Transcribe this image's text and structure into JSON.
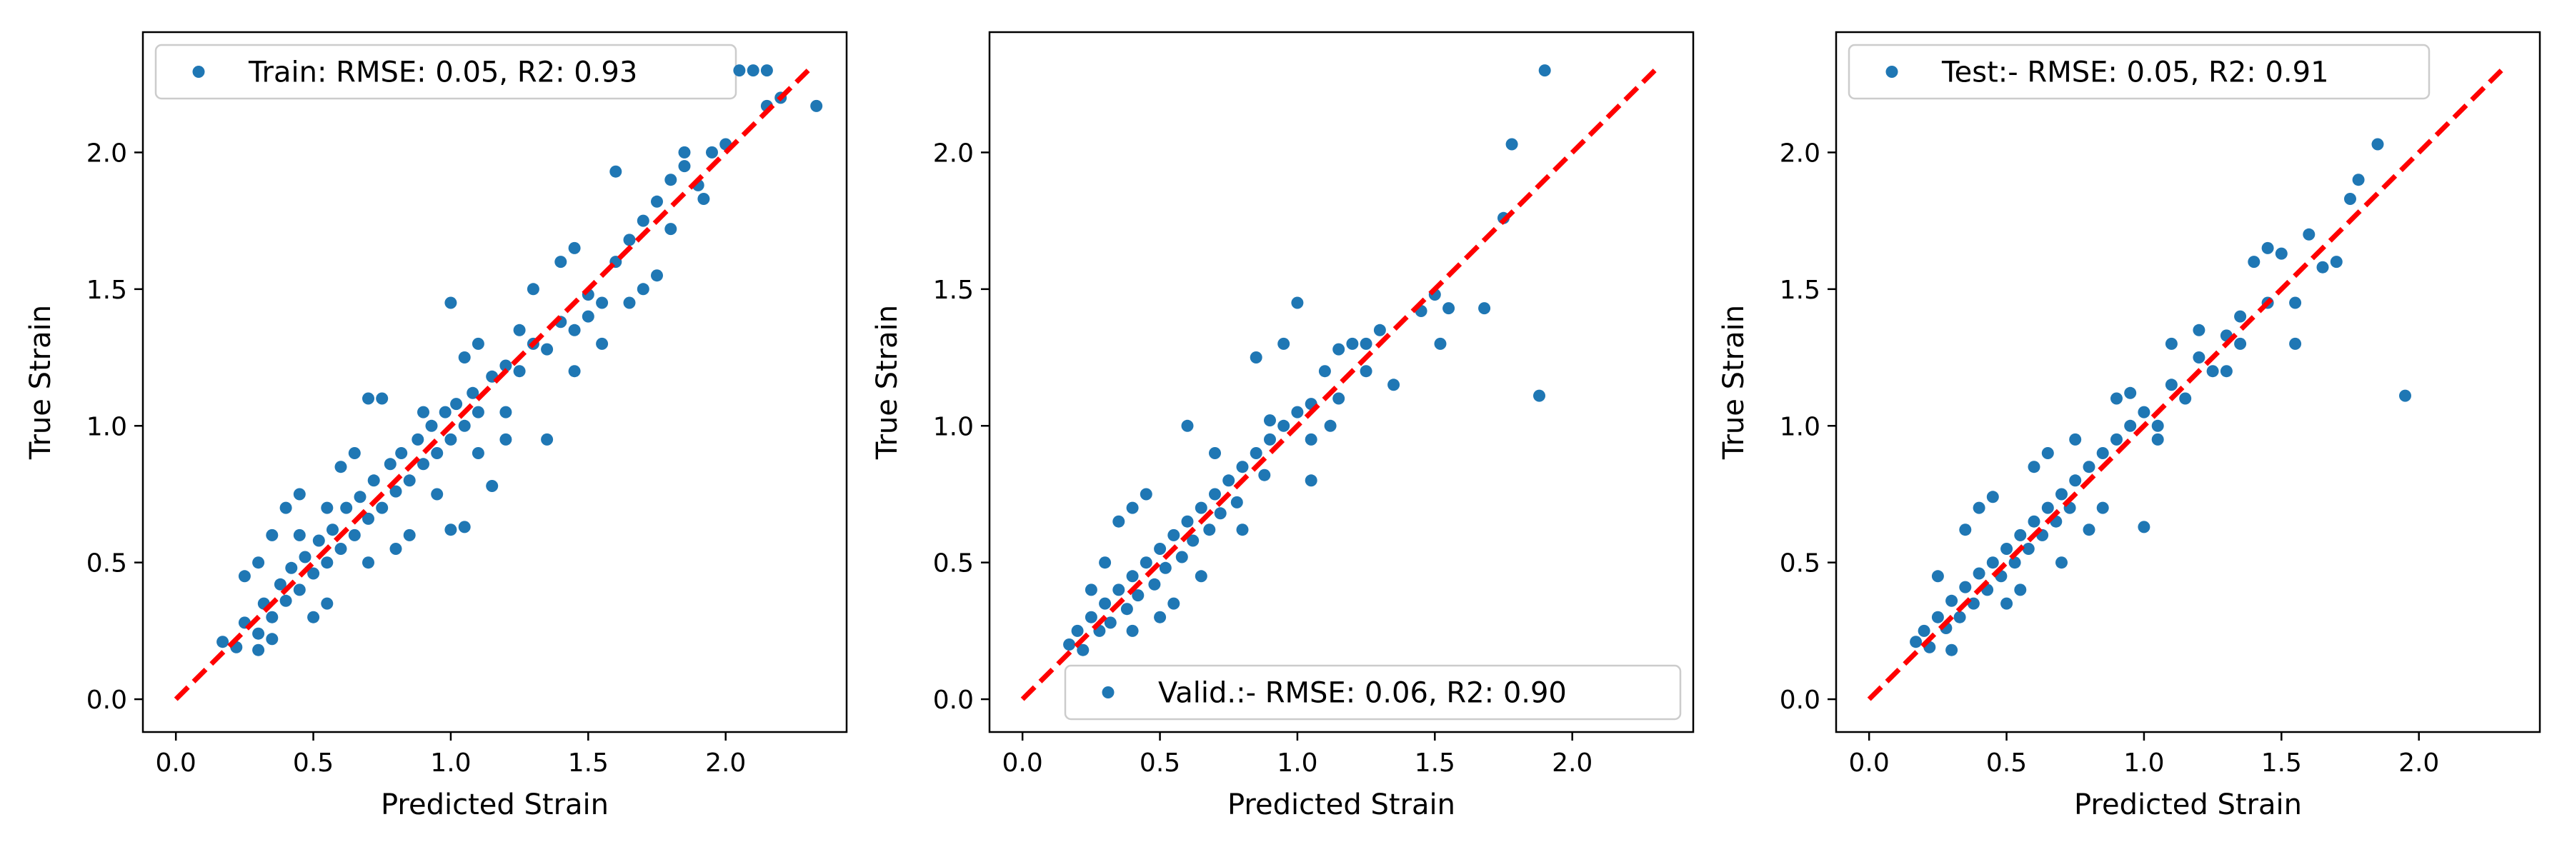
{
  "colors": {
    "point": "#1f77b4",
    "identity_line": "#ff0000",
    "axes": "#000000",
    "background": "#ffffff",
    "legend_border": "#cccccc"
  },
  "chart_data": [
    {
      "type": "scatter",
      "title": "",
      "xlabel": "Predicted Strain",
      "ylabel": "True Strain",
      "xlim": [
        -0.12,
        2.44
      ],
      "ylim": [
        -0.12,
        2.44
      ],
      "xticks": [
        "0.0",
        "0.5",
        "1.0",
        "1.5",
        "2.0"
      ],
      "yticks": [
        "0.0",
        "0.5",
        "1.0",
        "1.5",
        "2.0"
      ],
      "grid": false,
      "legend": {
        "label": "Train: RMSE: 0.05, R2: 0.93",
        "placement": "upper left"
      },
      "reference_line": {
        "x": [
          0,
          2.3
        ],
        "y": [
          0,
          2.3
        ],
        "style": "dashed"
      },
      "series": [
        {
          "name": "Train: RMSE: 0.05, R2: 0.93",
          "points": [
            [
              0.17,
              0.21
            ],
            [
              0.22,
              0.19
            ],
            [
              0.25,
              0.28
            ],
            [
              0.3,
              0.24
            ],
            [
              0.32,
              0.35
            ],
            [
              0.35,
              0.3
            ],
            [
              0.38,
              0.42
            ],
            [
              0.4,
              0.36
            ],
            [
              0.42,
              0.48
            ],
            [
              0.45,
              0.4
            ],
            [
              0.47,
              0.52
            ],
            [
              0.5,
              0.46
            ],
            [
              0.52,
              0.58
            ],
            [
              0.55,
              0.5
            ],
            [
              0.57,
              0.62
            ],
            [
              0.6,
              0.55
            ],
            [
              0.62,
              0.7
            ],
            [
              0.65,
              0.6
            ],
            [
              0.67,
              0.74
            ],
            [
              0.7,
              0.66
            ],
            [
              0.72,
              0.8
            ],
            [
              0.75,
              0.7
            ],
            [
              0.78,
              0.86
            ],
            [
              0.8,
              0.76
            ],
            [
              0.82,
              0.9
            ],
            [
              0.85,
              0.8
            ],
            [
              0.88,
              0.95
            ],
            [
              0.9,
              0.86
            ],
            [
              0.93,
              1.0
            ],
            [
              0.95,
              0.9
            ],
            [
              0.98,
              1.05
            ],
            [
              1.0,
              0.95
            ],
            [
              1.02,
              1.08
            ],
            [
              1.05,
              1.0
            ],
            [
              1.08,
              1.12
            ],
            [
              1.1,
              1.05
            ],
            [
              1.15,
              1.18
            ],
            [
              1.2,
              1.22
            ],
            [
              1.25,
              1.2
            ],
            [
              1.3,
              1.3
            ],
            [
              1.35,
              1.28
            ],
            [
              1.4,
              1.38
            ],
            [
              1.45,
              1.35
            ],
            [
              1.5,
              1.48
            ],
            [
              1.55,
              1.45
            ],
            [
              1.6,
              1.6
            ],
            [
              1.65,
              1.68
            ],
            [
              1.7,
              1.75
            ],
            [
              1.75,
              1.82
            ],
            [
              1.8,
              1.9
            ],
            [
              1.85,
              1.95
            ],
            [
              1.9,
              1.88
            ],
            [
              1.95,
              2.0
            ],
            [
              2.0,
              2.03
            ],
            [
              2.1,
              2.3
            ],
            [
              2.15,
              2.17
            ],
            [
              2.2,
              2.2
            ],
            [
              2.33,
              2.17
            ],
            [
              0.35,
              0.6
            ],
            [
              0.4,
              0.7
            ],
            [
              0.45,
              0.75
            ],
            [
              0.5,
              0.3
            ],
            [
              0.55,
              0.35
            ],
            [
              0.6,
              0.85
            ],
            [
              0.65,
              0.9
            ],
            [
              0.7,
              1.1
            ],
            [
              0.75,
              1.1
            ],
            [
              0.8,
              0.55
            ],
            [
              0.85,
              0.6
            ],
            [
              1.0,
              0.62
            ],
            [
              1.05,
              0.63
            ],
            [
              1.15,
              0.78
            ],
            [
              1.2,
              0.95
            ],
            [
              1.35,
              0.95
            ],
            [
              1.4,
              1.6
            ],
            [
              1.45,
              1.2
            ],
            [
              1.3,
              1.5
            ],
            [
              1.0,
              1.45
            ],
            [
              1.1,
              1.3
            ],
            [
              1.25,
              1.35
            ],
            [
              1.45,
              1.65
            ],
            [
              1.6,
              1.93
            ],
            [
              1.7,
              1.5
            ],
            [
              1.75,
              1.55
            ],
            [
              1.8,
              1.72
            ],
            [
              0.25,
              0.45
            ],
            [
              0.3,
              0.5
            ],
            [
              0.3,
              0.18
            ],
            [
              0.35,
              0.22
            ],
            [
              0.45,
              0.6
            ],
            [
              0.55,
              0.7
            ],
            [
              0.7,
              0.5
            ],
            [
              0.9,
              1.05
            ],
            [
              0.95,
              0.75
            ],
            [
              1.05,
              1.25
            ],
            [
              1.1,
              0.9
            ],
            [
              1.2,
              1.05
            ],
            [
              1.5,
              1.4
            ],
            [
              1.55,
              1.3
            ],
            [
              1.65,
              1.45
            ],
            [
              1.85,
              2.0
            ],
            [
              1.92,
              1.83
            ],
            [
              2.05,
              2.3
            ],
            [
              2.15,
              2.3
            ]
          ]
        }
      ]
    },
    {
      "type": "scatter",
      "title": "",
      "xlabel": "Predicted Strain",
      "ylabel": "True Strain",
      "xlim": [
        -0.12,
        2.44
      ],
      "ylim": [
        -0.12,
        2.44
      ],
      "xticks": [
        "0.0",
        "0.5",
        "1.0",
        "1.5",
        "2.0"
      ],
      "yticks": [
        "0.0",
        "0.5",
        "1.0",
        "1.5",
        "2.0"
      ],
      "grid": false,
      "legend": {
        "label": "Valid.:- RMSE: 0.06, R2: 0.90",
        "placement": "lower right"
      },
      "reference_line": {
        "x": [
          0,
          2.3
        ],
        "y": [
          0,
          2.3
        ],
        "style": "dashed"
      },
      "series": [
        {
          "name": "Valid.:- RMSE: 0.06, R2: 0.90",
          "points": [
            [
              0.17,
              0.2
            ],
            [
              0.2,
              0.25
            ],
            [
              0.22,
              0.18
            ],
            [
              0.25,
              0.3
            ],
            [
              0.28,
              0.25
            ],
            [
              0.3,
              0.35
            ],
            [
              0.32,
              0.28
            ],
            [
              0.35,
              0.4
            ],
            [
              0.38,
              0.33
            ],
            [
              0.4,
              0.45
            ],
            [
              0.42,
              0.38
            ],
            [
              0.45,
              0.5
            ],
            [
              0.48,
              0.42
            ],
            [
              0.5,
              0.55
            ],
            [
              0.52,
              0.48
            ],
            [
              0.55,
              0.6
            ],
            [
              0.58,
              0.52
            ],
            [
              0.6,
              0.65
            ],
            [
              0.62,
              0.58
            ],
            [
              0.65,
              0.7
            ],
            [
              0.68,
              0.62
            ],
            [
              0.7,
              0.75
            ],
            [
              0.72,
              0.68
            ],
            [
              0.75,
              0.8
            ],
            [
              0.78,
              0.72
            ],
            [
              0.8,
              0.85
            ],
            [
              0.85,
              0.9
            ],
            [
              0.88,
              0.82
            ],
            [
              0.9,
              0.95
            ],
            [
              0.95,
              1.0
            ],
            [
              1.0,
              1.05
            ],
            [
              1.05,
              0.95
            ],
            [
              1.1,
              1.2
            ],
            [
              1.15,
              1.1
            ],
            [
              1.2,
              1.3
            ],
            [
              1.25,
              1.2
            ],
            [
              1.3,
              1.35
            ],
            [
              1.35,
              1.15
            ],
            [
              1.5,
              1.48
            ],
            [
              1.55,
              1.43
            ],
            [
              1.68,
              1.43
            ],
            [
              1.75,
              1.76
            ],
            [
              1.78,
              2.03
            ],
            [
              1.88,
              1.11
            ],
            [
              1.9,
              2.3
            ],
            [
              0.35,
              0.65
            ],
            [
              0.4,
              0.7
            ],
            [
              0.45,
              0.75
            ],
            [
              0.5,
              0.3
            ],
            [
              0.55,
              0.35
            ],
            [
              0.6,
              1.0
            ],
            [
              0.7,
              0.9
            ],
            [
              0.8,
              0.62
            ],
            [
              0.85,
              1.25
            ],
            [
              0.95,
              1.3
            ],
            [
              1.0,
              1.45
            ],
            [
              1.05,
              0.8
            ],
            [
              0.4,
              0.25
            ],
            [
              0.3,
              0.5
            ],
            [
              0.25,
              0.4
            ],
            [
              1.15,
              1.28
            ],
            [
              1.52,
              1.3
            ],
            [
              0.65,
              0.45
            ],
            [
              0.9,
              1.02
            ],
            [
              1.05,
              1.08
            ],
            [
              1.12,
              1.0
            ],
            [
              1.25,
              1.3
            ],
            [
              1.45,
              1.42
            ]
          ]
        }
      ]
    },
    {
      "type": "scatter",
      "title": "",
      "xlabel": "Predicted Strain",
      "ylabel": "True Strain",
      "xlim": [
        -0.12,
        2.44
      ],
      "ylim": [
        -0.12,
        2.44
      ],
      "xticks": [
        "0.0",
        "0.5",
        "1.0",
        "1.5",
        "2.0"
      ],
      "yticks": [
        "0.0",
        "0.5",
        "1.0",
        "1.5",
        "2.0"
      ],
      "grid": false,
      "legend": {
        "label": "Test:- RMSE: 0.05, R2: 0.91",
        "placement": "upper left"
      },
      "reference_line": {
        "x": [
          0,
          2.3
        ],
        "y": [
          0,
          2.3
        ],
        "style": "dashed"
      },
      "series": [
        {
          "name": "Test:- RMSE: 0.05, R2: 0.91",
          "points": [
            [
              0.17,
              0.21
            ],
            [
              0.2,
              0.25
            ],
            [
              0.22,
              0.19
            ],
            [
              0.25,
              0.3
            ],
            [
              0.28,
              0.26
            ],
            [
              0.3,
              0.36
            ],
            [
              0.33,
              0.3
            ],
            [
              0.35,
              0.41
            ],
            [
              0.38,
              0.35
            ],
            [
              0.4,
              0.46
            ],
            [
              0.43,
              0.4
            ],
            [
              0.45,
              0.5
            ],
            [
              0.48,
              0.45
            ],
            [
              0.5,
              0.55
            ],
            [
              0.53,
              0.5
            ],
            [
              0.55,
              0.6
            ],
            [
              0.58,
              0.55
            ],
            [
              0.6,
              0.65
            ],
            [
              0.63,
              0.6
            ],
            [
              0.65,
              0.7
            ],
            [
              0.68,
              0.65
            ],
            [
              0.7,
              0.75
            ],
            [
              0.73,
              0.7
            ],
            [
              0.75,
              0.8
            ],
            [
              0.8,
              0.85
            ],
            [
              0.85,
              0.9
            ],
            [
              0.9,
              0.95
            ],
            [
              0.95,
              1.0
            ],
            [
              1.0,
              1.05
            ],
            [
              1.05,
              1.0
            ],
            [
              1.1,
              1.15
            ],
            [
              1.15,
              1.1
            ],
            [
              1.2,
              1.25
            ],
            [
              1.25,
              1.2
            ],
            [
              1.3,
              1.33
            ],
            [
              1.35,
              1.3
            ],
            [
              1.4,
              1.6
            ],
            [
              1.45,
              1.45
            ],
            [
              1.5,
              1.63
            ],
            [
              1.55,
              1.45
            ],
            [
              1.6,
              1.7
            ],
            [
              1.65,
              1.58
            ],
            [
              1.75,
              1.83
            ],
            [
              1.78,
              1.9
            ],
            [
              1.85,
              2.03
            ],
            [
              1.95,
              1.11
            ],
            [
              0.35,
              0.62
            ],
            [
              0.4,
              0.7
            ],
            [
              0.45,
              0.74
            ],
            [
              0.5,
              0.35
            ],
            [
              0.6,
              0.85
            ],
            [
              0.65,
              0.9
            ],
            [
              0.7,
              0.5
            ],
            [
              0.8,
              0.62
            ],
            [
              0.9,
              1.1
            ],
            [
              1.0,
              0.63
            ],
            [
              1.05,
              0.95
            ],
            [
              1.1,
              1.3
            ],
            [
              1.3,
              1.2
            ],
            [
              1.35,
              1.4
            ],
            [
              1.55,
              1.3
            ],
            [
              0.3,
              0.18
            ],
            [
              0.25,
              0.45
            ],
            [
              0.55,
              0.4
            ],
            [
              0.75,
              0.95
            ],
            [
              0.85,
              0.7
            ],
            [
              0.95,
              1.12
            ],
            [
              1.2,
              1.35
            ],
            [
              1.45,
              1.65
            ],
            [
              1.7,
              1.6
            ]
          ]
        }
      ]
    }
  ]
}
